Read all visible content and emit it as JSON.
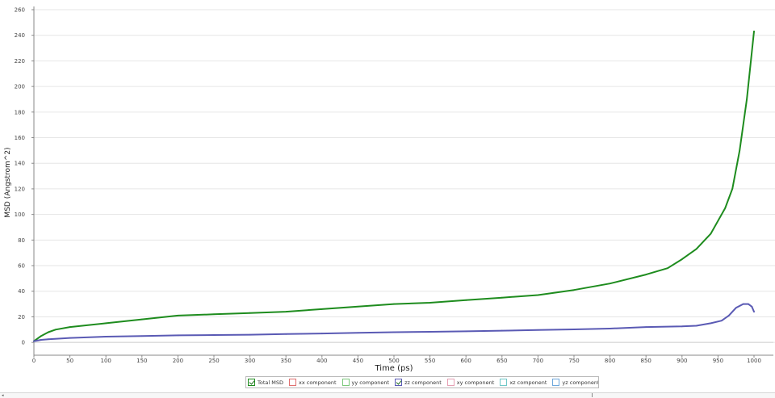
{
  "chart_data": {
    "type": "line",
    "title": "",
    "xlabel": "Time (ps)",
    "ylabel": "MSD (Angstrom^2)",
    "xlim": [
      0,
      1000
    ],
    "ylim": [
      -10,
      260
    ],
    "xticks": [
      0,
      50,
      100,
      150,
      200,
      250,
      300,
      350,
      400,
      450,
      500,
      550,
      600,
      650,
      700,
      750,
      800,
      850,
      900,
      950,
      1000
    ],
    "yticks": [
      0,
      20,
      40,
      60,
      80,
      100,
      120,
      140,
      160,
      180,
      200,
      220,
      240,
      260
    ],
    "grid": "horizontal",
    "legend_position": "bottom",
    "series": [
      {
        "name": "Total MSD",
        "color": "#1e8c1e",
        "x": [
          0,
          10,
          20,
          30,
          50,
          100,
          150,
          200,
          250,
          300,
          350,
          400,
          450,
          500,
          550,
          600,
          650,
          700,
          750,
          800,
          850,
          880,
          900,
          920,
          940,
          960,
          970,
          980,
          990,
          1000
        ],
        "y": [
          1,
          5,
          8,
          10,
          12,
          15,
          18,
          21,
          22,
          23,
          24,
          26,
          28,
          30,
          31,
          33,
          35,
          37,
          41,
          46,
          53,
          58,
          65,
          73,
          85,
          105,
          120,
          150,
          190,
          243
        ]
      },
      {
        "name": "zz component",
        "color": "#5a5ab4",
        "x": [
          0,
          10,
          20,
          50,
          100,
          150,
          200,
          250,
          300,
          350,
          400,
          450,
          500,
          550,
          600,
          650,
          700,
          750,
          800,
          850,
          900,
          920,
          940,
          955,
          965,
          975,
          985,
          992,
          997,
          1000
        ],
        "y": [
          1,
          2,
          2.5,
          3.5,
          4.5,
          5,
          5.5,
          5.8,
          6,
          6.5,
          7,
          7.5,
          8,
          8.3,
          8.7,
          9.2,
          9.7,
          10.2,
          10.8,
          12,
          12.5,
          13,
          15,
          17,
          21,
          27,
          30,
          30,
          28,
          24
        ]
      }
    ]
  },
  "legend": [
    {
      "label": "Total MSD",
      "checked": true,
      "color": "#1e8c1e"
    },
    {
      "label": "xx component",
      "checked": false,
      "color": "#e07070"
    },
    {
      "label": "yy component",
      "checked": false,
      "color": "#7cc87c"
    },
    {
      "label": "zz component",
      "checked": true,
      "color": "#5a5ab4"
    },
    {
      "label": "xy component",
      "checked": false,
      "color": "#e6a0b4"
    },
    {
      "label": "xz component",
      "checked": false,
      "color": "#70c8c8"
    },
    {
      "label": "yz component",
      "checked": false,
      "color": "#6fa8dc"
    }
  ],
  "corner_mark": "◂"
}
